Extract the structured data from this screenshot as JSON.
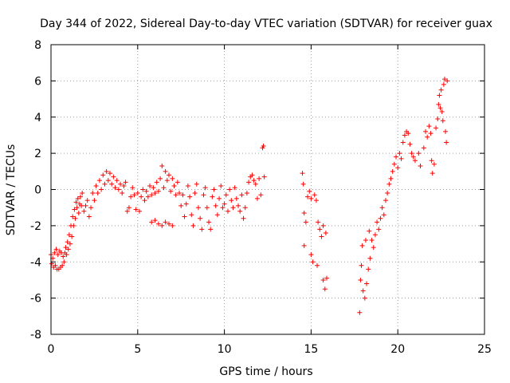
{
  "chart_data": {
    "type": "scatter",
    "title": "Day 344 of 2022, Sidereal Day-to-day VTEC variation (SDTVAR) for receiver guax",
    "xlabel": "GPS time / hours",
    "ylabel": "SDTVAR / TECUs",
    "xlim": [
      0,
      25
    ],
    "ylim": [
      -8,
      8
    ],
    "xticks": [
      0,
      5,
      10,
      15,
      20,
      25
    ],
    "yticks": [
      -8,
      -6,
      -4,
      -2,
      0,
      2,
      4,
      6,
      8
    ],
    "grid": true,
    "marker": "plus",
    "colors": {
      "series": "#ff0000",
      "axis": "#000000",
      "grid": "#a0a0a0"
    },
    "series": [
      {
        "name": "SDTVAR",
        "points": [
          [
            0.0,
            -3.6
          ],
          [
            0.05,
            -4.1
          ],
          [
            0.1,
            -3.8
          ],
          [
            0.15,
            -4.3
          ],
          [
            0.2,
            -3.5
          ],
          [
            0.25,
            -4.2
          ],
          [
            0.3,
            -3.3
          ],
          [
            0.35,
            -4.4
          ],
          [
            0.4,
            -3.6
          ],
          [
            0.45,
            -4.4
          ],
          [
            0.5,
            -3.4
          ],
          [
            0.55,
            -4.3
          ],
          [
            0.6,
            -3.5
          ],
          [
            0.65,
            -4.2
          ],
          [
            0.7,
            -3.7
          ],
          [
            0.75,
            -4.0
          ],
          [
            0.8,
            -3.5
          ],
          [
            0.85,
            -3.2
          ],
          [
            0.9,
            -3.6
          ],
          [
            0.95,
            -2.9
          ],
          [
            1.0,
            -3.3
          ],
          [
            1.05,
            -2.5
          ],
          [
            1.1,
            -3.0
          ],
          [
            1.15,
            -2.0
          ],
          [
            1.2,
            -2.6
          ],
          [
            1.25,
            -1.5
          ],
          [
            1.3,
            -2.0
          ],
          [
            1.35,
            -1.1
          ],
          [
            1.4,
            -1.6
          ],
          [
            1.45,
            -0.7
          ],
          [
            1.5,
            -1.0
          ],
          [
            1.55,
            -0.5
          ],
          [
            1.6,
            -1.3
          ],
          [
            1.65,
            -0.8
          ],
          [
            1.7,
            -0.4
          ],
          [
            1.75,
            -0.9
          ],
          [
            1.8,
            -0.2
          ],
          [
            1.9,
            -1.2
          ],
          [
            2.0,
            -0.9
          ],
          [
            2.1,
            -0.6
          ],
          [
            2.2,
            -1.5
          ],
          [
            2.3,
            -1.0
          ],
          [
            2.4,
            -0.2
          ],
          [
            2.5,
            -0.6
          ],
          [
            2.6,
            0.2
          ],
          [
            2.7,
            -0.2
          ],
          [
            2.8,
            0.5
          ],
          [
            2.9,
            0.0
          ],
          [
            3.0,
            0.8
          ],
          [
            3.1,
            0.3
          ],
          [
            3.2,
            1.0
          ],
          [
            3.3,
            0.5
          ],
          [
            3.4,
            0.9
          ],
          [
            3.5,
            0.3
          ],
          [
            3.6,
            0.7
          ],
          [
            3.7,
            0.1
          ],
          [
            3.8,
            0.5
          ],
          [
            3.9,
            0.0
          ],
          [
            4.0,
            0.3
          ],
          [
            4.1,
            -0.2
          ],
          [
            4.2,
            0.2
          ],
          [
            4.3,
            0.4
          ],
          [
            4.4,
            -1.2
          ],
          [
            4.5,
            -1.0
          ],
          [
            4.6,
            -0.4
          ],
          [
            4.7,
            0.1
          ],
          [
            4.8,
            -0.3
          ],
          [
            4.9,
            -1.1
          ],
          [
            5.0,
            -0.2
          ],
          [
            5.1,
            -1.2
          ],
          [
            5.2,
            -0.4
          ],
          [
            5.3,
            0.0
          ],
          [
            5.4,
            -0.6
          ],
          [
            5.5,
            -0.1
          ],
          [
            5.6,
            -0.4
          ],
          [
            5.7,
            0.2
          ],
          [
            5.8,
            -0.3
          ],
          [
            5.9,
            0.1
          ],
          [
            6.0,
            -0.2
          ],
          [
            6.1,
            0.4
          ],
          [
            6.2,
            -0.1
          ],
          [
            6.3,
            0.6
          ],
          [
            6.4,
            1.3
          ],
          [
            6.5,
            0.1
          ],
          [
            6.6,
            1.0
          ],
          [
            6.7,
            0.5
          ],
          [
            6.8,
            0.8
          ],
          [
            6.9,
            -0.1
          ],
          [
            7.0,
            0.6
          ],
          [
            7.1,
            0.2
          ],
          [
            7.2,
            -0.3
          ],
          [
            5.8,
            -1.8
          ],
          [
            6.0,
            -1.7
          ],
          [
            6.2,
            -1.9
          ],
          [
            6.4,
            -2.0
          ],
          [
            6.6,
            -1.8
          ],
          [
            6.8,
            -1.9
          ],
          [
            7.0,
            -2.0
          ],
          [
            7.3,
            0.4
          ],
          [
            7.4,
            -0.2
          ],
          [
            7.5,
            -0.9
          ],
          [
            7.6,
            -0.3
          ],
          [
            7.7,
            -1.5
          ],
          [
            7.8,
            -0.8
          ],
          [
            7.9,
            0.2
          ],
          [
            8.0,
            -0.4
          ],
          [
            8.1,
            -1.4
          ],
          [
            8.2,
            -2.0
          ],
          [
            8.3,
            -0.2
          ],
          [
            8.4,
            0.3
          ],
          [
            8.5,
            -1.0
          ],
          [
            8.6,
            -1.6
          ],
          [
            8.7,
            -2.2
          ],
          [
            8.8,
            -0.3
          ],
          [
            8.9,
            0.1
          ],
          [
            9.0,
            -1.0
          ],
          [
            9.1,
            -1.8
          ],
          [
            9.2,
            -2.2
          ],
          [
            9.3,
            -0.4
          ],
          [
            9.4,
            0.0
          ],
          [
            9.5,
            -0.9
          ],
          [
            9.6,
            -1.4
          ],
          [
            9.7,
            -0.5
          ],
          [
            9.8,
            0.2
          ],
          [
            9.9,
            -1.0
          ],
          [
            10.0,
            -0.8
          ],
          [
            10.1,
            -0.3
          ],
          [
            10.2,
            -1.2
          ],
          [
            10.3,
            0.0
          ],
          [
            10.4,
            -0.6
          ],
          [
            10.5,
            -1.0
          ],
          [
            10.6,
            0.1
          ],
          [
            10.7,
            -0.5
          ],
          [
            10.8,
            -0.9
          ],
          [
            10.9,
            -1.2
          ],
          [
            11.0,
            -0.3
          ],
          [
            11.1,
            -1.6
          ],
          [
            11.2,
            -1.0
          ],
          [
            11.3,
            -0.2
          ],
          [
            11.4,
            0.4
          ],
          [
            11.5,
            0.7
          ],
          [
            11.6,
            0.8
          ],
          [
            11.7,
            0.5
          ],
          [
            11.8,
            0.3
          ],
          [
            11.9,
            -0.5
          ],
          [
            12.0,
            0.6
          ],
          [
            12.1,
            -0.3
          ],
          [
            12.2,
            2.3
          ],
          [
            12.25,
            2.4
          ],
          [
            12.3,
            0.7
          ],
          [
            14.5,
            0.9
          ],
          [
            14.55,
            0.3
          ],
          [
            14.6,
            -1.3
          ],
          [
            14.7,
            -1.8
          ],
          [
            14.6,
            -3.1
          ],
          [
            14.8,
            -0.4
          ],
          [
            14.9,
            -0.1
          ],
          [
            15.0,
            -0.5
          ],
          [
            15.0,
            -3.6
          ],
          [
            15.1,
            -4.0
          ],
          [
            15.2,
            -0.3
          ],
          [
            15.3,
            -0.6
          ],
          [
            15.35,
            -4.2
          ],
          [
            15.4,
            -1.8
          ],
          [
            15.5,
            -2.2
          ],
          [
            15.6,
            -2.6
          ],
          [
            15.7,
            -2.0
          ],
          [
            15.7,
            -5.0
          ],
          [
            15.8,
            -5.5
          ],
          [
            15.85,
            -2.4
          ],
          [
            15.9,
            -4.9
          ],
          [
            17.8,
            -6.8
          ],
          [
            17.85,
            -5.0
          ],
          [
            17.9,
            -4.2
          ],
          [
            17.95,
            -3.1
          ],
          [
            18.0,
            -5.6
          ],
          [
            18.1,
            -6.0
          ],
          [
            18.15,
            -2.8
          ],
          [
            18.2,
            -5.2
          ],
          [
            18.3,
            -4.4
          ],
          [
            18.35,
            -2.3
          ],
          [
            18.4,
            -3.8
          ],
          [
            18.5,
            -2.8
          ],
          [
            18.6,
            -3.2
          ],
          [
            18.7,
            -2.5
          ],
          [
            18.8,
            -1.8
          ],
          [
            18.9,
            -2.2
          ],
          [
            19.0,
            -1.6
          ],
          [
            19.1,
            -1.0
          ],
          [
            19.2,
            -1.4
          ],
          [
            19.3,
            -0.6
          ],
          [
            19.4,
            -0.2
          ],
          [
            19.5,
            0.3
          ],
          [
            19.6,
            0.6
          ],
          [
            19.7,
            1.0
          ],
          [
            19.8,
            1.4
          ],
          [
            19.9,
            1.8
          ],
          [
            20.0,
            1.2
          ],
          [
            20.1,
            2.0
          ],
          [
            20.2,
            1.7
          ],
          [
            20.3,
            2.6
          ],
          [
            20.4,
            3.0
          ],
          [
            20.5,
            3.2
          ],
          [
            20.6,
            3.1
          ],
          [
            20.7,
            2.5
          ],
          [
            20.8,
            2.0
          ],
          [
            20.9,
            1.8
          ],
          [
            21.0,
            1.6
          ],
          [
            21.2,
            2.0
          ],
          [
            21.3,
            1.3
          ],
          [
            21.5,
            2.3
          ],
          [
            21.6,
            3.2
          ],
          [
            21.7,
            2.9
          ],
          [
            21.8,
            3.5
          ],
          [
            21.9,
            3.1
          ],
          [
            21.95,
            1.6
          ],
          [
            22.0,
            0.9
          ],
          [
            22.1,
            1.4
          ],
          [
            22.2,
            3.4
          ],
          [
            22.3,
            3.9
          ],
          [
            22.35,
            4.7
          ],
          [
            22.4,
            5.2
          ],
          [
            22.45,
            4.5
          ],
          [
            22.5,
            5.5
          ],
          [
            22.55,
            4.3
          ],
          [
            22.6,
            3.8
          ],
          [
            22.65,
            5.8
          ],
          [
            22.7,
            6.1
          ],
          [
            22.75,
            3.2
          ],
          [
            22.8,
            2.6
          ],
          [
            22.85,
            6.0
          ]
        ]
      }
    ]
  }
}
